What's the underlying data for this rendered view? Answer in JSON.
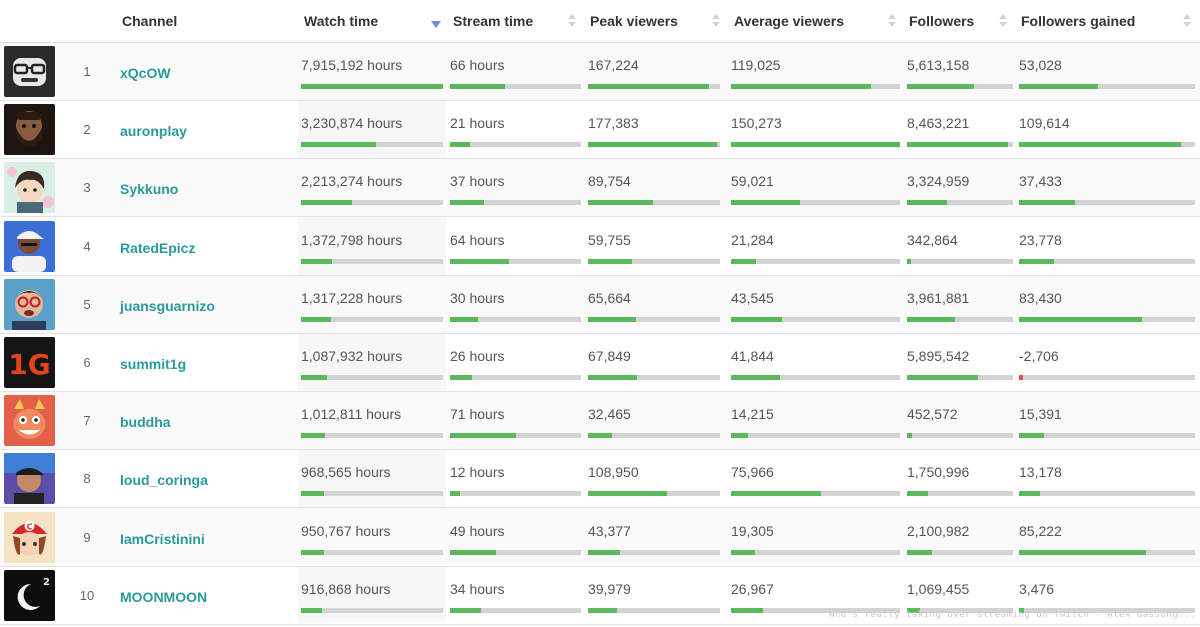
{
  "table": {
    "columns": [
      {
        "key": "channel",
        "label": "Channel"
      },
      {
        "key": "watch",
        "label": "Watch time",
        "sort": "desc"
      },
      {
        "key": "stream",
        "label": "Stream time"
      },
      {
        "key": "peak",
        "label": "Peak viewers"
      },
      {
        "key": "avg",
        "label": "Average viewers"
      },
      {
        "key": "followers",
        "label": "Followers"
      },
      {
        "key": "gained",
        "label": "Followers gained"
      }
    ],
    "rows": [
      {
        "rank": "1",
        "channel": "xQcOW",
        "avatar_icon": "gorilla-glasses-avatar",
        "watch": "7,915,192 hours",
        "stream": "66 hours",
        "peak": "167,224",
        "avg": "119,025",
        "followers": "5,613,158",
        "gained": "53,028",
        "bars": {
          "watch": 1.0,
          "stream": 0.42,
          "peak": 0.92,
          "avg": 0.83,
          "followers": 0.63,
          "gained": 0.45
        }
      },
      {
        "rank": "2",
        "channel": "auronplay",
        "avatar_icon": "bearded-man-avatar",
        "watch": "3,230,874 hours",
        "stream": "21 hours",
        "peak": "177,383",
        "avg": "150,273",
        "followers": "8,463,221",
        "gained": "109,614",
        "bars": {
          "watch": 0.53,
          "stream": 0.15,
          "peak": 0.98,
          "avg": 1.0,
          "followers": 0.95,
          "gained": 0.92
        }
      },
      {
        "rank": "3",
        "channel": "Sykkuno",
        "avatar_icon": "anime-boy-avatar",
        "watch": "2,213,274 hours",
        "stream": "37 hours",
        "peak": "89,754",
        "avg": "59,021",
        "followers": "3,324,959",
        "gained": "37,433",
        "bars": {
          "watch": 0.36,
          "stream": 0.26,
          "peak": 0.49,
          "avg": 0.41,
          "followers": 0.38,
          "gained": 0.32
        }
      },
      {
        "rank": "4",
        "channel": "RatedEpicz",
        "avatar_icon": "man-cap-avatar",
        "watch": "1,372,798 hours",
        "stream": "64 hours",
        "peak": "59,755",
        "avg": "21,284",
        "followers": "342,864",
        "gained": "23,778",
        "bars": {
          "watch": 0.22,
          "stream": 0.45,
          "peak": 0.33,
          "avg": 0.15,
          "followers": 0.04,
          "gained": 0.2
        }
      },
      {
        "rank": "5",
        "channel": "juansguarnizo",
        "avatar_icon": "man-glasses-avatar",
        "watch": "1,317,228 hours",
        "stream": "30 hours",
        "peak": "65,664",
        "avg": "43,545",
        "followers": "3,961,881",
        "gained": "83,430",
        "bars": {
          "watch": 0.21,
          "stream": 0.21,
          "peak": 0.36,
          "avg": 0.3,
          "followers": 0.45,
          "gained": 0.7
        }
      },
      {
        "rank": "6",
        "channel": "summit1g",
        "avatar_icon": "1g-logo-avatar",
        "watch": "1,087,932 hours",
        "stream": "26 hours",
        "peak": "67,849",
        "avg": "41,844",
        "followers": "5,895,542",
        "gained": "-2,706",
        "bars": {
          "watch": 0.18,
          "stream": 0.17,
          "peak": 0.37,
          "avg": 0.29,
          "followers": 0.67,
          "gained": -0.025
        }
      },
      {
        "rank": "7",
        "channel": "buddha",
        "avatar_icon": "demon-mask-avatar",
        "watch": "1,012,811 hours",
        "stream": "71 hours",
        "peak": "32,465",
        "avg": "14,215",
        "followers": "452,572",
        "gained": "15,391",
        "bars": {
          "watch": 0.17,
          "stream": 0.5,
          "peak": 0.18,
          "avg": 0.1,
          "followers": 0.05,
          "gained": 0.14
        }
      },
      {
        "rank": "8",
        "channel": "loud_coringa",
        "avatar_icon": "man-hat-avatar",
        "watch": "968,565 hours",
        "stream": "12 hours",
        "peak": "108,950",
        "avg": "75,966",
        "followers": "1,750,996",
        "gained": "13,178",
        "bars": {
          "watch": 0.16,
          "stream": 0.08,
          "peak": 0.6,
          "avg": 0.53,
          "followers": 0.2,
          "gained": 0.12
        }
      },
      {
        "rank": "9",
        "channel": "IamCristinini",
        "avatar_icon": "mario-girl-avatar",
        "watch": "950,767 hours",
        "stream": "49 hours",
        "peak": "43,377",
        "avg": "19,305",
        "followers": "2,100,982",
        "gained": "85,222",
        "bars": {
          "watch": 0.16,
          "stream": 0.35,
          "peak": 0.24,
          "avg": 0.14,
          "followers": 0.24,
          "gained": 0.72
        }
      },
      {
        "rank": "10",
        "channel": "MOONMOON",
        "avatar_icon": "moon-logo-avatar",
        "watch": "916,868 hours",
        "stream": "34 hours",
        "peak": "39,979",
        "avg": "26,967",
        "followers": "1,069,455",
        "gained": "3,476",
        "bars": {
          "watch": 0.15,
          "stream": 0.24,
          "peak": 0.22,
          "avg": 0.19,
          "followers": 0.12,
          "gained": 0.03
        }
      }
    ]
  },
  "watermark": "Who's really taking over streaming on Twitch - Alex Gassong...",
  "colors": {
    "bar_fill": "#5cb85c",
    "bar_track": "#d3d3d3",
    "bar_negative": "#d9534f",
    "channel_link": "#2a9a9a",
    "sort_active": "#6c8fd1"
  }
}
